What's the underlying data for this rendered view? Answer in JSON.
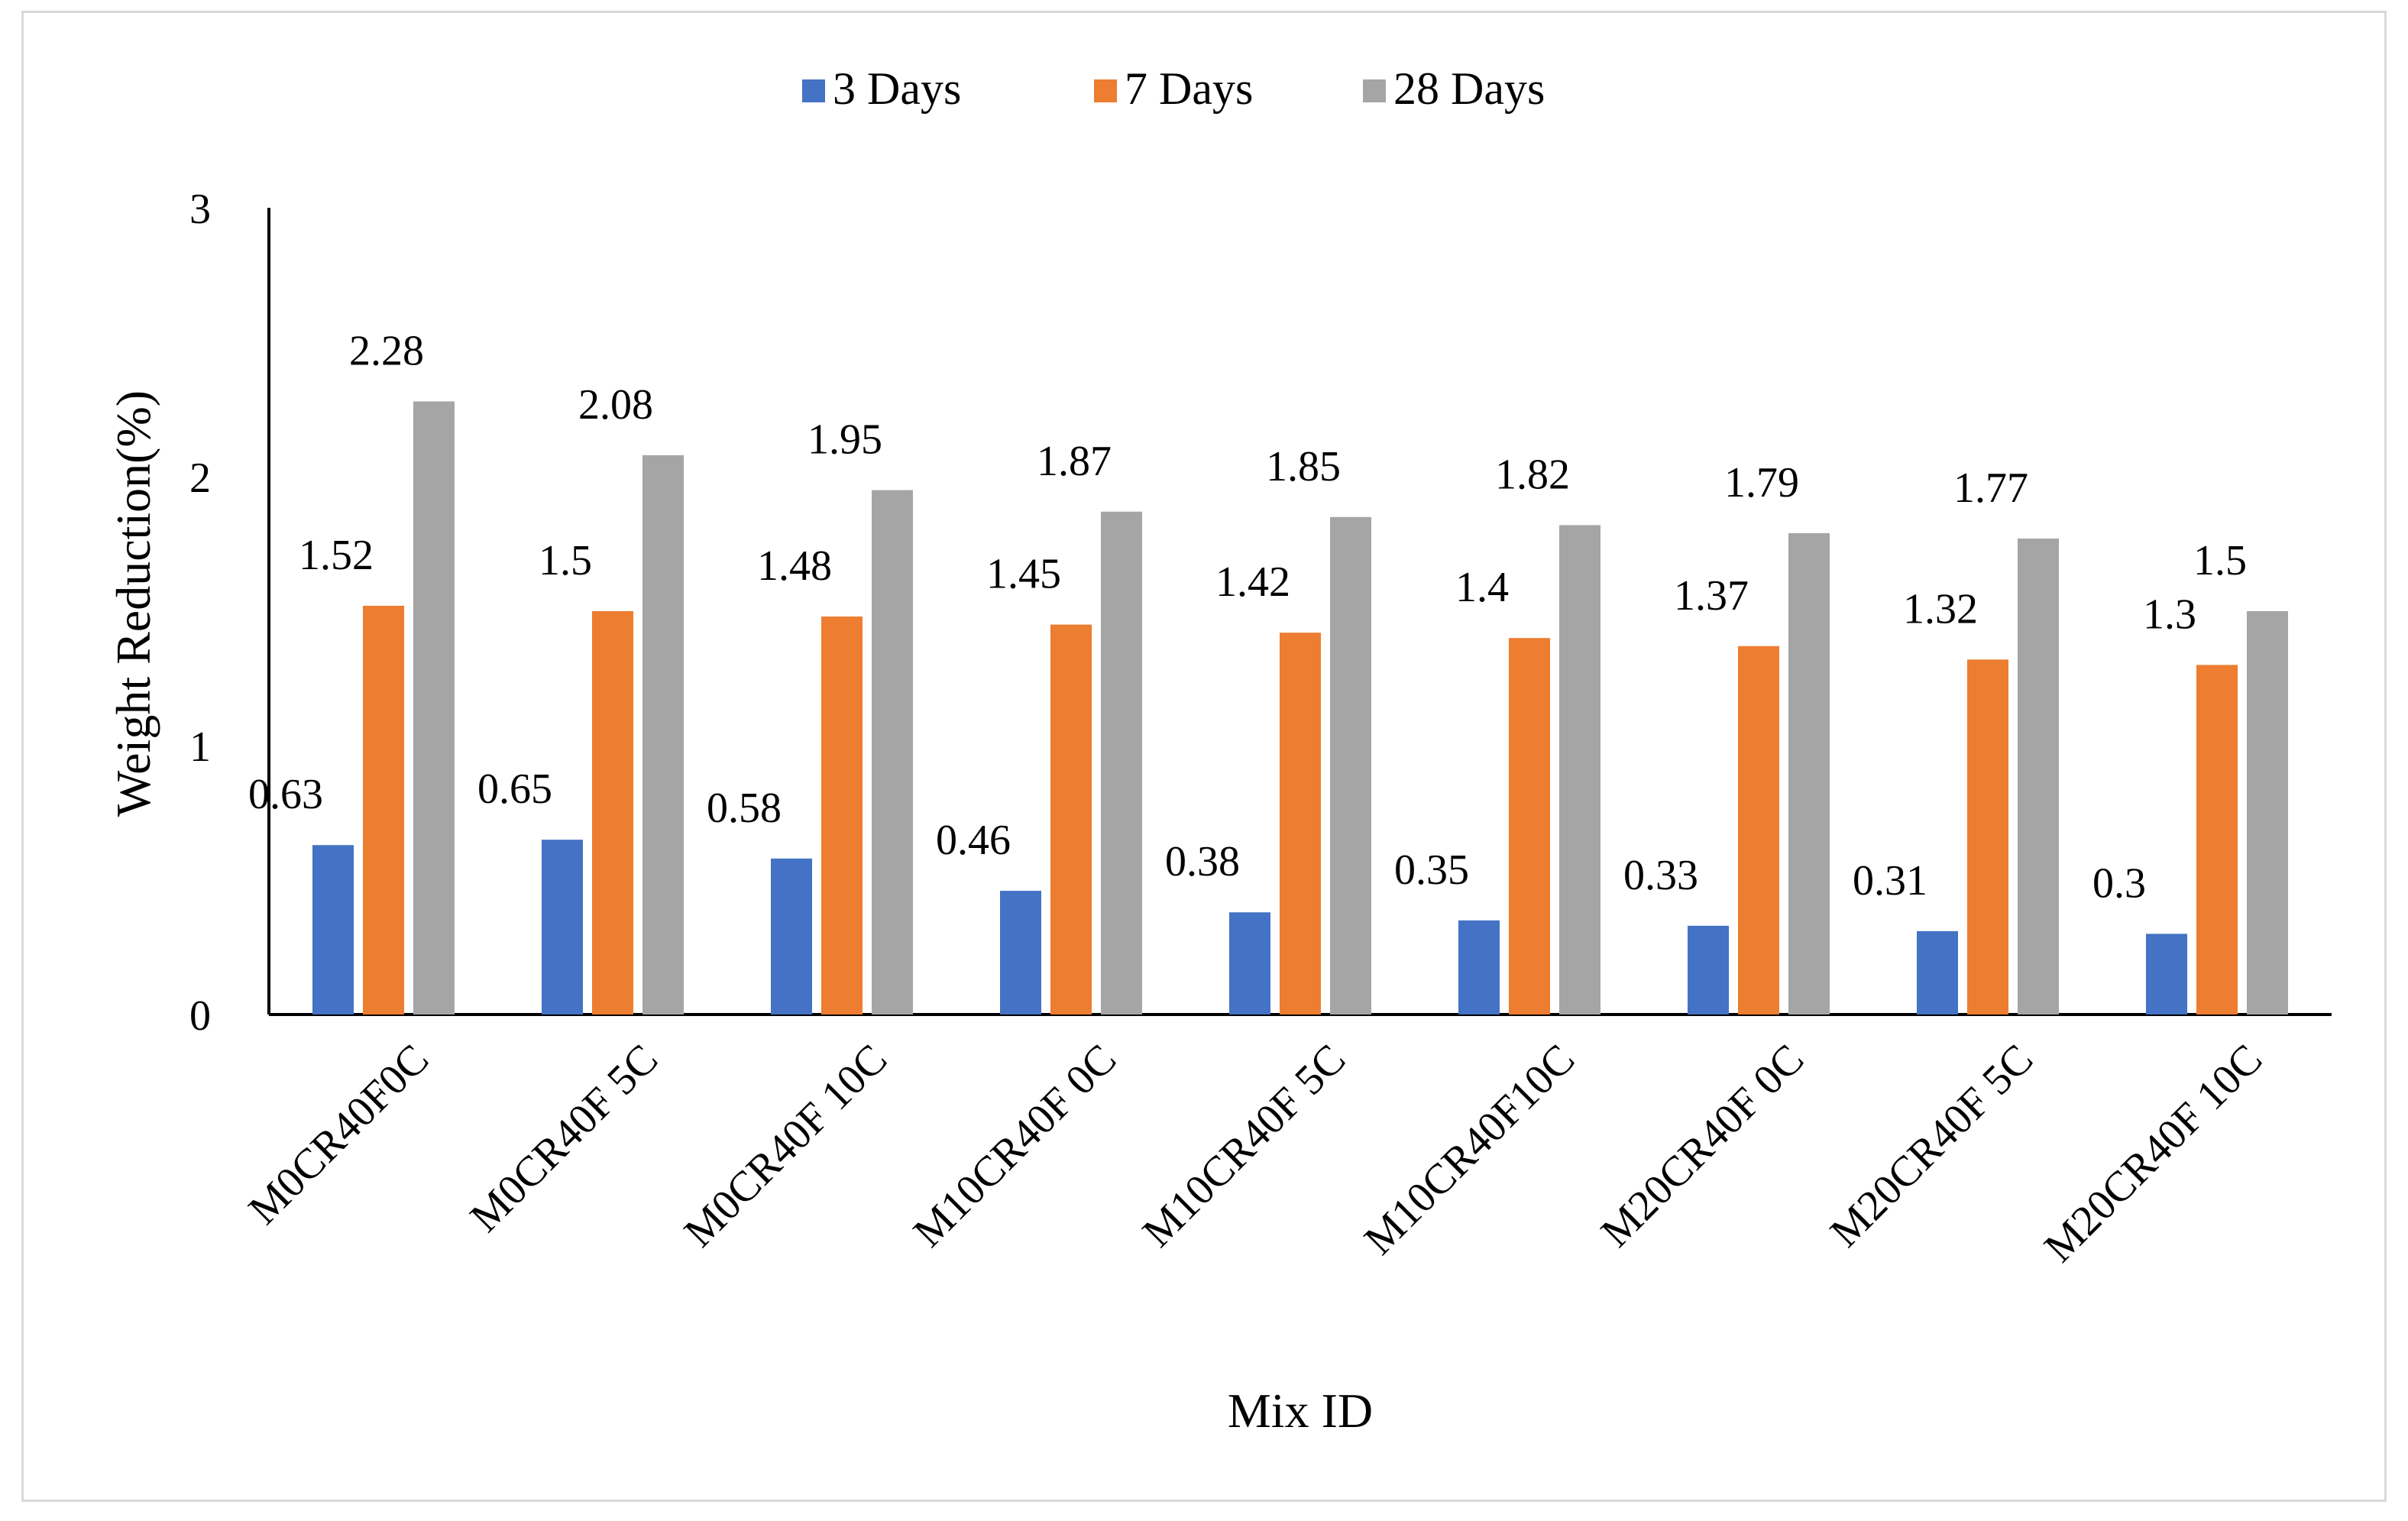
{
  "chart_data": {
    "type": "bar",
    "title": "",
    "xlabel": "Mix ID",
    "ylabel": "Weight Reduction(%)",
    "ylim": [
      0,
      3
    ],
    "yticks": [
      "0",
      "1",
      "2",
      "3"
    ],
    "grid": false,
    "legend_position": "top",
    "categories": [
      "M0CR40F0C",
      "M0CR40F 5C",
      "M0CR40F 10C",
      "M10CR40F 0C",
      "M10CR40F 5C",
      "M10CR40F10C",
      "M20CR40F 0C",
      "M20CR40F 5C",
      "M20CR40F 10C"
    ],
    "series": [
      {
        "name": "3 Days",
        "color": "#4472c4",
        "values": [
          0.63,
          0.65,
          0.58,
          0.46,
          0.38,
          0.35,
          0.33,
          0.31,
          0.3
        ],
        "labels": [
          "0.63",
          "0.65",
          "0.58",
          "0.46",
          "0.38",
          "0.35",
          "0.33",
          "0.31",
          "0.3"
        ]
      },
      {
        "name": "7 Days",
        "color": "#ed7d31",
        "values": [
          1.52,
          1.5,
          1.48,
          1.45,
          1.42,
          1.4,
          1.37,
          1.32,
          1.3
        ],
        "labels": [
          "1.52",
          "1.5",
          "1.48",
          "1.45",
          "1.42",
          "1.4",
          "1.37",
          "1.32",
          "1.3"
        ]
      },
      {
        "name": "28 Days",
        "color": "#a5a5a5",
        "values": [
          2.28,
          2.08,
          1.95,
          1.87,
          1.85,
          1.82,
          1.79,
          1.77,
          1.5
        ],
        "labels": [
          "2.28",
          "2.08",
          "1.95",
          "1.87",
          "1.85",
          "1.82",
          "1.79",
          "1.77",
          "1.5"
        ]
      }
    ]
  }
}
